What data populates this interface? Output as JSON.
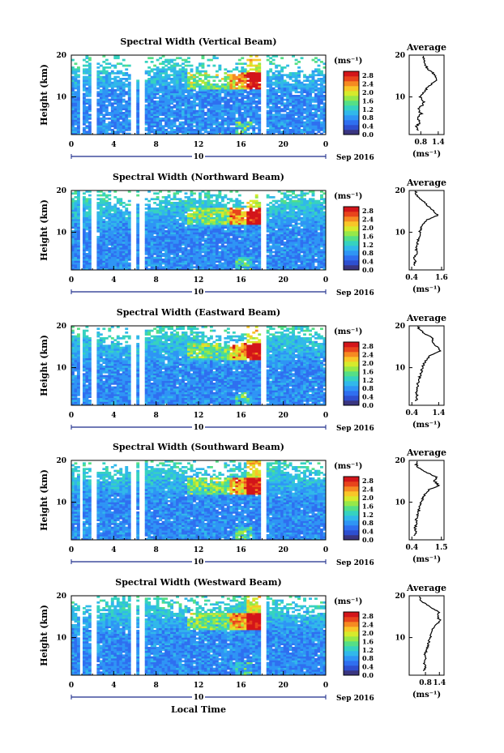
{
  "colors": {
    "colormap": [
      "#3a3580",
      "#2e4fd0",
      "#2f6ff0",
      "#2f95f5",
      "#31b8ea",
      "#36d2c0",
      "#55df86",
      "#96e849",
      "#d6ea2c",
      "#f8c628",
      "#f58a22",
      "#e8441c",
      "#d3151a"
    ],
    "gap": "#ffffff",
    "axis": "#000000"
  },
  "shared": {
    "date_label": "Sep 2016",
    "date_tick": "10",
    "x_axis_label": "Local Time",
    "y_axis_label": "Height (km)",
    "colorbar_unit": "(ms⁻¹)",
    "profile_title": "Average",
    "profile_xlabel": "(ms⁻¹)"
  },
  "chart_data": [
    {
      "type": "heatmap",
      "title": "Spectral Width (Vertical Beam)",
      "x": {
        "label": "",
        "range": [
          0,
          24
        ],
        "ticks": [
          "0",
          "4",
          "8",
          "12",
          "16",
          "20",
          "0"
        ]
      },
      "y": {
        "label": "Height (km)",
        "range": [
          1,
          20
        ],
        "ticks": [
          "10",
          "20"
        ]
      },
      "colorbar": {
        "ticks": [
          "0.0",
          "0.4",
          "0.8",
          "1.2",
          "1.6",
          "2.0",
          "2.4",
          "2.8"
        ],
        "range": [
          0,
          3.0
        ]
      },
      "data_gaps_hours": [
        [
          0.8,
          1.2
        ],
        [
          2.0,
          2.4
        ],
        [
          5.6,
          6.0
        ],
        [
          6.5,
          6.9
        ],
        [
          17.8,
          18.3
        ]
      ],
      "profile": {
        "type": "line",
        "title": "Average",
        "xlim": [
          0.4,
          1.6
        ],
        "xticks": [
          "0.8",
          "1.4"
        ],
        "yticks": [
          "10",
          "20"
        ],
        "height_km": [
          2,
          3,
          4,
          5,
          6,
          7,
          8,
          9,
          10,
          11,
          12,
          13,
          14,
          15,
          16,
          17,
          18,
          19,
          20
        ],
        "width_ms": [
          0.72,
          0.65,
          0.78,
          0.68,
          0.82,
          0.7,
          0.85,
          0.9,
          0.78,
          0.88,
          1.0,
          1.15,
          1.38,
          1.3,
          1.18,
          1.0,
          0.95,
          0.9,
          0.85
        ]
      }
    },
    {
      "type": "heatmap",
      "title": "Spectral Width (Northward Beam)",
      "x": {
        "label": "",
        "range": [
          0,
          24
        ],
        "ticks": [
          "0",
          "4",
          "8",
          "12",
          "16",
          "20",
          "0"
        ]
      },
      "y": {
        "label": "Height (km)",
        "range": [
          1,
          20
        ],
        "ticks": [
          "10",
          "20"
        ]
      },
      "colorbar": {
        "ticks": [
          "0.0",
          "0.4",
          "0.8",
          "1.2",
          "1.6",
          "2.0",
          "2.4",
          "2.8"
        ],
        "range": [
          0,
          3.0
        ]
      },
      "data_gaps_hours": [
        [
          0.8,
          1.2
        ],
        [
          2.0,
          2.4
        ],
        [
          5.6,
          6.0
        ],
        [
          6.5,
          6.9
        ],
        [
          17.8,
          18.3
        ]
      ],
      "profile": {
        "type": "line",
        "title": "Average",
        "xlim": [
          0.3,
          1.7
        ],
        "xticks": [
          "0.4",
          "1.6"
        ],
        "yticks": [
          "10",
          "20"
        ],
        "height_km": [
          2,
          3,
          4,
          5,
          6,
          7,
          8,
          9,
          10,
          11,
          12,
          13,
          14,
          15,
          16,
          17,
          18,
          19,
          20
        ],
        "width_ms": [
          0.5,
          0.55,
          0.52,
          0.6,
          0.58,
          0.62,
          0.65,
          0.7,
          0.72,
          0.78,
          0.85,
          1.0,
          1.45,
          1.3,
          1.1,
          0.95,
          0.75,
          0.6,
          0.55
        ]
      }
    },
    {
      "type": "heatmap",
      "title": "Spectral Width (Eastward Beam)",
      "x": {
        "label": "",
        "range": [
          0,
          24
        ],
        "ticks": [
          "0",
          "4",
          "8",
          "12",
          "16",
          "20",
          "0"
        ]
      },
      "y": {
        "label": "Height (km)",
        "range": [
          1,
          20
        ],
        "ticks": [
          "10",
          "20"
        ]
      },
      "colorbar": {
        "ticks": [
          "0.0",
          "0.4",
          "0.8",
          "1.2",
          "1.6",
          "2.0",
          "2.4",
          "2.8"
        ],
        "range": [
          0,
          3.0
        ]
      },
      "data_gaps_hours": [
        [
          0.8,
          1.2
        ],
        [
          2.0,
          2.4
        ],
        [
          5.6,
          6.0
        ],
        [
          6.5,
          6.9
        ],
        [
          17.8,
          18.3
        ]
      ],
      "profile": {
        "type": "line",
        "title": "Average",
        "xlim": [
          0.3,
          1.6
        ],
        "xticks": [
          "0.4",
          "1.4"
        ],
        "yticks": [
          "10",
          "20"
        ],
        "height_km": [
          2,
          3,
          4,
          5,
          6,
          7,
          8,
          9,
          10,
          11,
          12,
          13,
          14,
          15,
          16,
          17,
          18,
          19,
          20
        ],
        "width_ms": [
          0.55,
          0.6,
          0.58,
          0.62,
          0.6,
          0.66,
          0.7,
          0.75,
          0.8,
          0.85,
          0.95,
          1.1,
          1.45,
          1.35,
          1.15,
          1.2,
          0.9,
          0.7,
          0.6
        ]
      }
    },
    {
      "type": "heatmap",
      "title": "Spectral Width (Southward Beam)",
      "x": {
        "label": "",
        "range": [
          0,
          24
        ],
        "ticks": [
          "0",
          "4",
          "8",
          "12",
          "16",
          "20",
          "0"
        ]
      },
      "y": {
        "label": "Height (km)",
        "range": [
          1,
          20
        ],
        "ticks": [
          "10",
          "20"
        ]
      },
      "colorbar": {
        "ticks": [
          "0.0",
          "0.4",
          "0.8",
          "1.2",
          "1.6",
          "2.0",
          "2.4",
          "2.8"
        ],
        "range": [
          0,
          3.0
        ]
      },
      "data_gaps_hours": [
        [
          0.8,
          1.2
        ],
        [
          2.0,
          2.4
        ],
        [
          5.6,
          6.0
        ],
        [
          6.5,
          6.9
        ],
        [
          17.8,
          18.3
        ]
      ],
      "profile": {
        "type": "line",
        "title": "Average",
        "xlim": [
          0.3,
          1.6
        ],
        "xticks": [
          "0.4",
          "1.5"
        ],
        "yticks": [
          "10",
          "20"
        ],
        "height_km": [
          2,
          3,
          4,
          5,
          6,
          7,
          8,
          9,
          10,
          11,
          12,
          13,
          14,
          15,
          16,
          17,
          18,
          19,
          20
        ],
        "width_ms": [
          0.5,
          0.55,
          0.52,
          0.58,
          0.56,
          0.62,
          0.66,
          0.7,
          0.75,
          0.82,
          0.9,
          1.05,
          1.4,
          1.25,
          1.3,
          1.0,
          0.7,
          0.55,
          0.6
        ]
      }
    },
    {
      "type": "heatmap",
      "title": "Spectral Width (Westward Beam)",
      "x": {
        "label": "Local Time",
        "range": [
          0,
          24
        ],
        "ticks": [
          "0",
          "4",
          "8",
          "12",
          "16",
          "20",
          "0"
        ]
      },
      "y": {
        "label": "Height (km)",
        "range": [
          1,
          20
        ],
        "ticks": [
          "10",
          "20"
        ]
      },
      "colorbar": {
        "ticks": [
          "0.0",
          "0.4",
          "0.8",
          "1.2",
          "1.6",
          "2.0",
          "2.4",
          "2.8"
        ],
        "range": [
          0,
          3.0
        ]
      },
      "data_gaps_hours": [
        [
          0.8,
          1.2
        ],
        [
          2.0,
          2.4
        ],
        [
          5.6,
          6.0
        ],
        [
          6.5,
          6.9
        ],
        [
          17.8,
          18.3
        ]
      ],
      "profile": {
        "type": "line",
        "title": "Average",
        "xlim": [
          0.1,
          1.6
        ],
        "xticks": [
          "0.8",
          "1.4"
        ],
        "yticks": [
          "10",
          "20"
        ],
        "height_km": [
          2,
          3,
          4,
          5,
          6,
          7,
          8,
          9,
          10,
          11,
          12,
          13,
          14,
          15,
          16,
          17,
          18,
          19,
          20
        ],
        "width_ms": [
          0.75,
          0.8,
          0.72,
          0.82,
          0.78,
          0.85,
          0.9,
          0.95,
          1.0,
          1.05,
          1.1,
          1.2,
          1.45,
          1.3,
          1.4,
          1.1,
          0.8,
          0.6,
          0.5
        ]
      }
    }
  ]
}
